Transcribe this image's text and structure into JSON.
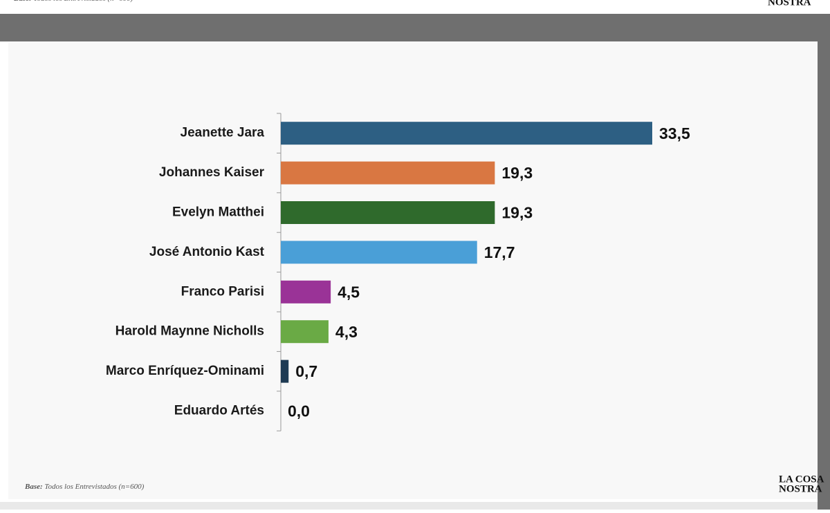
{
  "chart_data": {
    "type": "bar",
    "orientation": "horizontal",
    "categories": [
      "Jeanette Jara",
      "Johannes Kaiser",
      "Evelyn Matthei",
      "José Antonio Kast",
      "Franco Parisi",
      "Harold Maynne Nicholls",
      "Marco Enríquez-Ominami",
      "Eduardo Artés"
    ],
    "values": [
      33.5,
      19.3,
      19.3,
      17.7,
      4.5,
      4.3,
      0.7,
      0.0
    ],
    "value_labels": [
      "33,5",
      "19,3",
      "19,3",
      "17,7",
      "4,5",
      "4,3",
      "0,7",
      "0,0"
    ],
    "colors": [
      "#2d5f83",
      "#d97742",
      "#2f6a2c",
      "#4a9fd7",
      "#9a3397",
      "#6aaa45",
      "#1e3a53",
      "#1e3a53"
    ],
    "xlim": [
      0,
      40
    ],
    "footnote_label": "Base:",
    "footnote": "Todos los Entrevistados (n=600)",
    "logo": [
      "LA COSA",
      "NOSTRA"
    ]
  }
}
